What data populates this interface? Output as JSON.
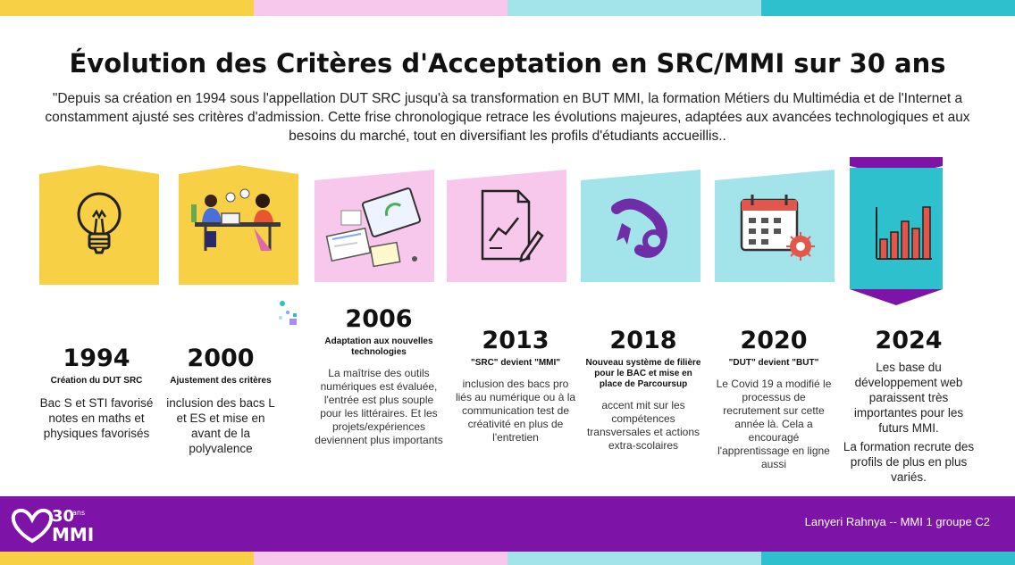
{
  "colors": {
    "yellow": "#f7d046",
    "pink": "#f8c8ec",
    "cyan": "#a3e3ea",
    "teal": "#2ec0cd",
    "purple": "#7e13a8",
    "accent_red": "#e2574c"
  },
  "title": "Évolution des Critères d'Acceptation en SRC/MMI sur 30 ans",
  "intro": "\"Depuis sa création en 1994 sous l'appellation DUT SRC jusqu'à sa transformation en BUT MMI, la formation Métiers du Multimédia et de l'Internet a constamment ajusté ses critères d'admission. Cette frise chronologique retrace les évolutions majeures, adaptées aux avancées technologiques et aux besoins du marché, tout en diversifiant les profils d'étudiants accueillis..",
  "timeline": [
    {
      "year": "1994",
      "subtitle": "Création du DUT SRC",
      "description": "Bac S et STI favorisé notes en maths et physiques favorisés",
      "icon": "lightbulb-icon"
    },
    {
      "year": "2000",
      "subtitle": "Ajustement des critères",
      "description": "inclusion des bacs L et ES et mise en avant de la polyvalence",
      "icon": "team-meeting-icon"
    },
    {
      "year": "2006",
      "subtitle": "Adaptation aux nouvelles technologies",
      "description": "La maîtrise des outils numériques est évaluée, l'entrée est plus souple pour les littéraires. Et les projets/expériences deviennent plus importants",
      "icon": "laptop-dashboard-icon"
    },
    {
      "year": "2013",
      "subtitle": "\"SRC\" devient \"MMI\"",
      "description": "inclusion des bacs pro liés au numérique ou à la communication test de créativité en plus de l'entretien",
      "icon": "document-chart-icon"
    },
    {
      "year": "2018",
      "subtitle": "Nouveau système de filière pour le BAC et mise en place de Parcoursup",
      "description": "accent mit sur les compétences transversales et actions extra-scolaires",
      "icon": "diploma-scroll-icon"
    },
    {
      "year": "2020",
      "subtitle": "\"DUT\" devient \"BUT\"",
      "description": "Le Covid 19 a modifié le processus de recrutement sur cette année là. Cela a encouragé l'apprentissage en ligne aussi",
      "icon": "calendar-virus-icon"
    },
    {
      "year": "2024",
      "subtitle": "",
      "description": "Les base du développement web paraissent très importantes pour les futurs MMI.",
      "description2": "La formation recrute des profils de plus en plus variés.",
      "icon": "bar-chart-icon"
    }
  ],
  "footer": {
    "logo_number": "30",
    "logo_ans": "ans",
    "logo_text": "MMI",
    "author": "Lanyeri Rahnya -- MMI 1 groupe C2"
  }
}
